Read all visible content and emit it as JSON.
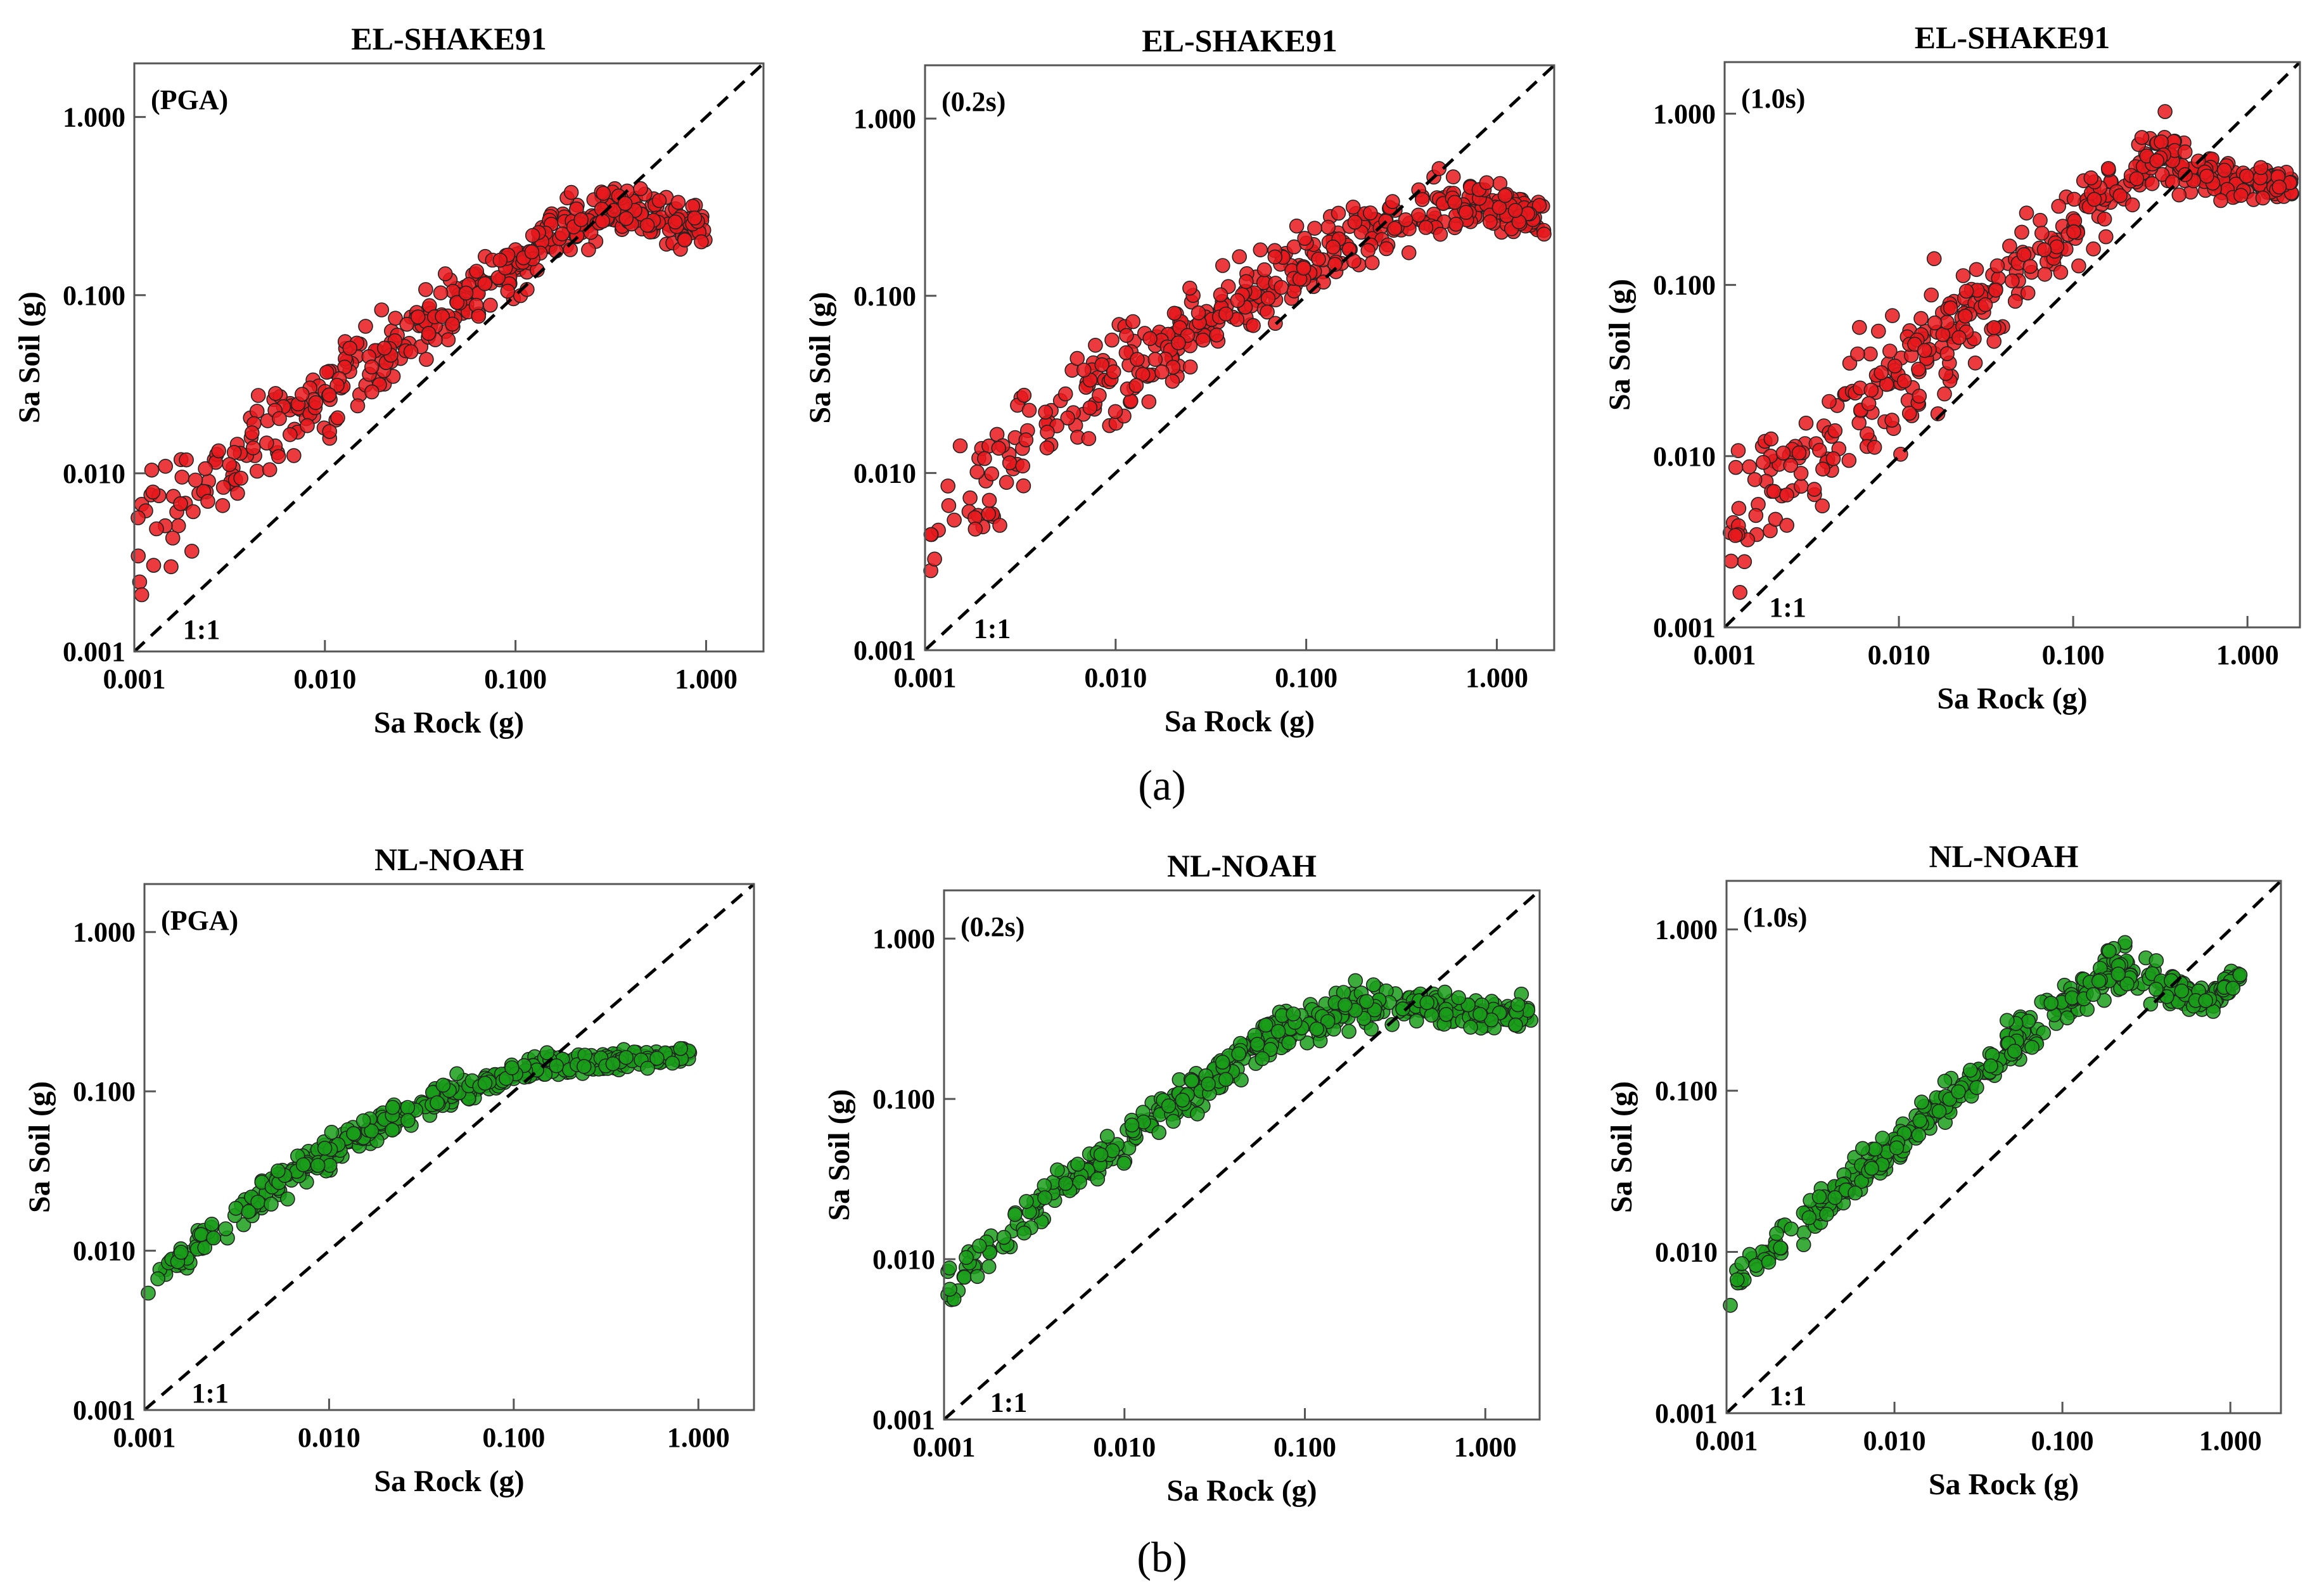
{
  "subfigure_labels": [
    "(a)",
    "(b)"
  ],
  "chart_data": [
    {
      "type": "scatter",
      "title": "EL-SHAKE91",
      "period": "(PGA)",
      "xlabel": "Sa Rock (g)",
      "ylabel": "Sa Soil (g)",
      "xscale": "log",
      "yscale": "log",
      "xlim": [
        0.001,
        2.0
      ],
      "ylim": [
        0.001,
        2.0
      ],
      "xticks": [
        "0.001",
        "0.010",
        "0.100",
        "1.000"
      ],
      "yticks": [
        "0.001",
        "0.010",
        "0.100",
        "1.000"
      ],
      "reference_line": {
        "label": "1:1",
        "style": "dashed"
      },
      "color": "#e8191c",
      "series": [
        {
          "name": "EL-SHAKE91 PGA",
          "x": [
            0.001,
            0.002,
            0.005,
            0.01,
            0.02,
            0.05,
            0.1,
            0.2,
            0.3,
            0.5,
            0.7,
            1.0
          ],
          "y": [
            0.0045,
            0.008,
            0.016,
            0.027,
            0.045,
            0.09,
            0.15,
            0.26,
            0.32,
            0.3,
            0.26,
            0.23
          ],
          "spread": [
            0.35,
            0.3,
            0.25,
            0.22,
            0.2,
            0.18,
            0.18,
            0.17,
            0.15,
            0.15,
            0.12,
            0.1
          ]
        }
      ]
    },
    {
      "type": "scatter",
      "title": "EL-SHAKE91",
      "period": "(0.2s)",
      "xlabel": "Sa Rock (g)",
      "ylabel": "Sa Soil (g)",
      "xscale": "log",
      "yscale": "log",
      "xlim": [
        0.001,
        2.0
      ],
      "ylim": [
        0.001,
        2.0
      ],
      "xticks": [
        "0.001",
        "0.010",
        "0.100",
        "1.000"
      ],
      "yticks": [
        "0.001",
        "0.010",
        "0.100",
        "1.000"
      ],
      "reference_line": {
        "label": "1:1",
        "style": "dashed"
      },
      "color": "#e8191c",
      "series": [
        {
          "name": "EL-SHAKE91 0.2s",
          "x": [
            0.001,
            0.002,
            0.005,
            0.01,
            0.02,
            0.05,
            0.1,
            0.2,
            0.5,
            0.8,
            1.2,
            1.8
          ],
          "y": [
            0.0035,
            0.0085,
            0.02,
            0.033,
            0.055,
            0.1,
            0.15,
            0.22,
            0.33,
            0.35,
            0.3,
            0.26
          ],
          "spread": [
            0.3,
            0.3,
            0.28,
            0.25,
            0.22,
            0.2,
            0.2,
            0.18,
            0.17,
            0.15,
            0.13,
            0.1
          ]
        }
      ]
    },
    {
      "type": "scatter",
      "title": "EL-SHAKE91",
      "period": "(1.0s)",
      "xlabel": "Sa Rock (g)",
      "ylabel": "Sa Soil (g)",
      "xscale": "log",
      "yscale": "log",
      "xlim": [
        0.001,
        2.0
      ],
      "ylim": [
        0.001,
        2.0
      ],
      "xticks": [
        "0.001",
        "0.010",
        "0.100",
        "1.000"
      ],
      "yticks": [
        "0.001",
        "0.010",
        "0.100",
        "1.000"
      ],
      "reference_line": {
        "label": "1:1",
        "style": "dashed"
      },
      "color": "#e8191c",
      "series": [
        {
          "name": "EL-SHAKE91 1.0s",
          "x": [
            0.001,
            0.002,
            0.005,
            0.01,
            0.02,
            0.05,
            0.1,
            0.2,
            0.3,
            0.5,
            1.0,
            1.8
          ],
          "y": [
            0.0035,
            0.007,
            0.016,
            0.03,
            0.055,
            0.12,
            0.22,
            0.42,
            0.6,
            0.45,
            0.4,
            0.38
          ],
          "spread": [
            0.35,
            0.38,
            0.38,
            0.36,
            0.33,
            0.3,
            0.26,
            0.22,
            0.2,
            0.15,
            0.1,
            0.1
          ]
        }
      ]
    },
    {
      "type": "scatter",
      "title": "NL-NOAH",
      "period": "(PGA)",
      "xlabel": "Sa Rock (g)",
      "ylabel": "Sa Soil (g)",
      "xscale": "log",
      "yscale": "log",
      "xlim": [
        0.001,
        2.0
      ],
      "ylim": [
        0.001,
        2.0
      ],
      "xticks": [
        "0.001",
        "0.010",
        "0.100",
        "1.000"
      ],
      "yticks": [
        "0.001",
        "0.010",
        "0.100",
        "1.000"
      ],
      "reference_line": {
        "label": "1:1",
        "style": "dashed"
      },
      "color": "#1a9e1a",
      "series": [
        {
          "name": "NL-NOAH PGA",
          "x": [
            0.001,
            0.002,
            0.005,
            0.01,
            0.02,
            0.05,
            0.1,
            0.2,
            0.5,
            0.9
          ],
          "y": [
            0.0055,
            0.011,
            0.025,
            0.042,
            0.065,
            0.1,
            0.13,
            0.15,
            0.16,
            0.17
          ],
          "spread": [
            0.12,
            0.1,
            0.1,
            0.1,
            0.1,
            0.08,
            0.07,
            0.06,
            0.05,
            0.05
          ]
        }
      ]
    },
    {
      "type": "scatter",
      "title": "NL-NOAH",
      "period": "(0.2s)",
      "xlabel": "Sa Rock (g)",
      "ylabel": "Sa Soil (g)",
      "xscale": "log",
      "yscale": "log",
      "xlim": [
        0.001,
        2.0
      ],
      "ylim": [
        0.001,
        2.0
      ],
      "xticks": [
        "0.001",
        "0.010",
        "0.100",
        "1.000"
      ],
      "yticks": [
        "0.001",
        "0.010",
        "0.100",
        "1.000"
      ],
      "reference_line": {
        "label": "1:1",
        "style": "dashed"
      },
      "color": "#1a9e1a",
      "series": [
        {
          "name": "NL-NOAH 0.2s",
          "x": [
            0.001,
            0.002,
            0.005,
            0.01,
            0.02,
            0.05,
            0.1,
            0.2,
            0.3,
            0.5,
            1.0,
            1.8
          ],
          "y": [
            0.007,
            0.013,
            0.03,
            0.055,
            0.1,
            0.2,
            0.3,
            0.38,
            0.4,
            0.38,
            0.33,
            0.35
          ],
          "spread": [
            0.15,
            0.14,
            0.13,
            0.13,
            0.13,
            0.13,
            0.13,
            0.12,
            0.12,
            0.1,
            0.1,
            0.1
          ]
        }
      ]
    },
    {
      "type": "scatter",
      "title": "NL-NOAH",
      "period": "(1.0s)",
      "xlabel": "Sa Rock (g)",
      "ylabel": "Sa Soil (g)",
      "xscale": "log",
      "yscale": "log",
      "xlim": [
        0.001,
        2.0
      ],
      "ylim": [
        0.001,
        2.0
      ],
      "xticks": [
        "0.001",
        "0.010",
        "0.100",
        "1.000"
      ],
      "yticks": [
        "0.001",
        "0.010",
        "0.100",
        "1.000"
      ],
      "reference_line": {
        "label": "1:1",
        "style": "dashed"
      },
      "color": "#1a9e1a",
      "series": [
        {
          "name": "NL-NOAH 1.0s",
          "x": [
            0.001,
            0.002,
            0.005,
            0.01,
            0.02,
            0.05,
            0.1,
            0.2,
            0.3,
            0.5,
            0.7,
            1.2
          ],
          "y": [
            0.006,
            0.011,
            0.025,
            0.045,
            0.085,
            0.2,
            0.35,
            0.55,
            0.5,
            0.4,
            0.35,
            0.55
          ],
          "spread": [
            0.12,
            0.12,
            0.12,
            0.12,
            0.12,
            0.13,
            0.14,
            0.14,
            0.13,
            0.12,
            0.1,
            0.05
          ]
        }
      ]
    }
  ]
}
